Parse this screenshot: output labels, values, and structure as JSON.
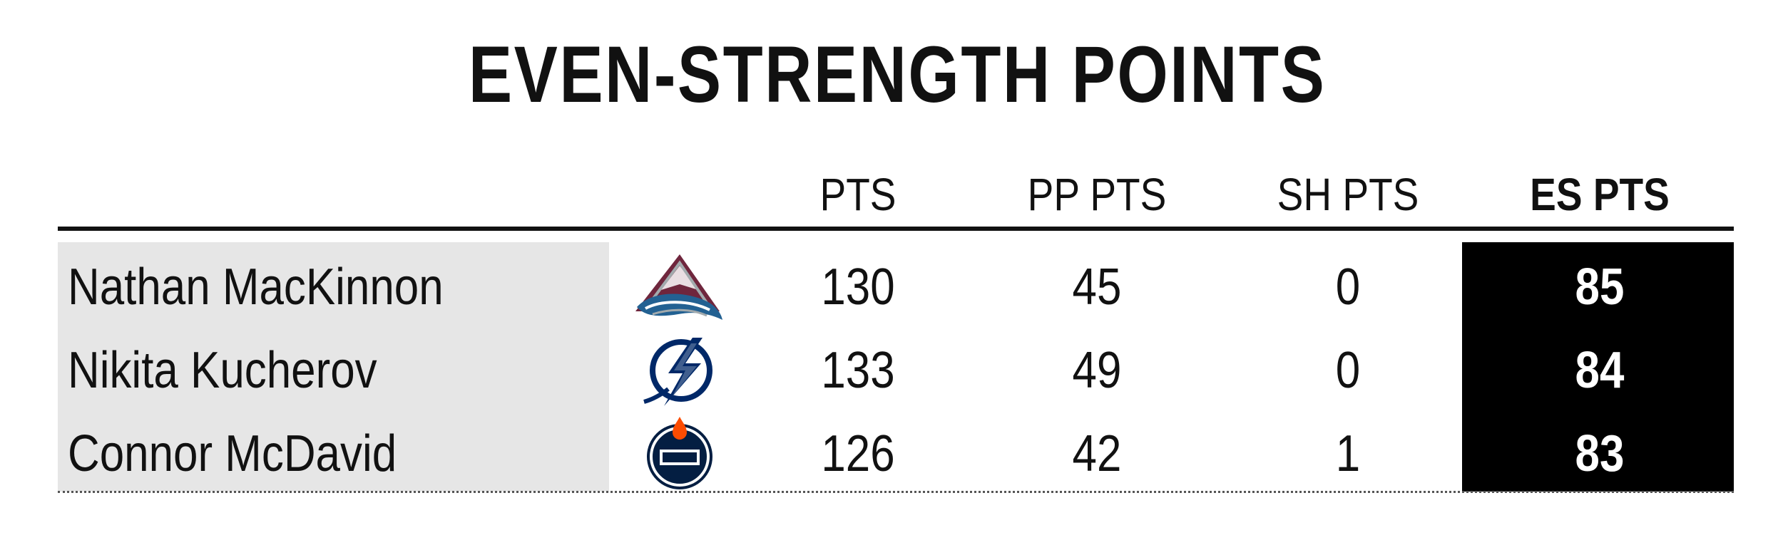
{
  "title": "EVEN-STRENGTH POINTS",
  "columns": {
    "pts": "PTS",
    "pp_pts": "PP PTS",
    "sh_pts": "SH PTS",
    "es_pts": "ES PTS"
  },
  "rows": [
    {
      "player": "Nathan MacKinnon",
      "team_logo": "colorado-avalanche-logo",
      "pts": "130",
      "pp_pts": "45",
      "sh_pts": "0",
      "es_pts": "85"
    },
    {
      "player": "Nikita Kucherov",
      "team_logo": "tampa-bay-lightning-logo",
      "pts": "133",
      "pp_pts": "49",
      "sh_pts": "0",
      "es_pts": "84"
    },
    {
      "player": "Connor McDavid",
      "team_logo": "edmonton-oilers-logo",
      "pts": "126",
      "pp_pts": "42",
      "sh_pts": "1",
      "es_pts": "83"
    }
  ],
  "colors": {
    "highlight_bg": "#000000",
    "name_bg": "#e6e6e6",
    "text": "#111111"
  }
}
